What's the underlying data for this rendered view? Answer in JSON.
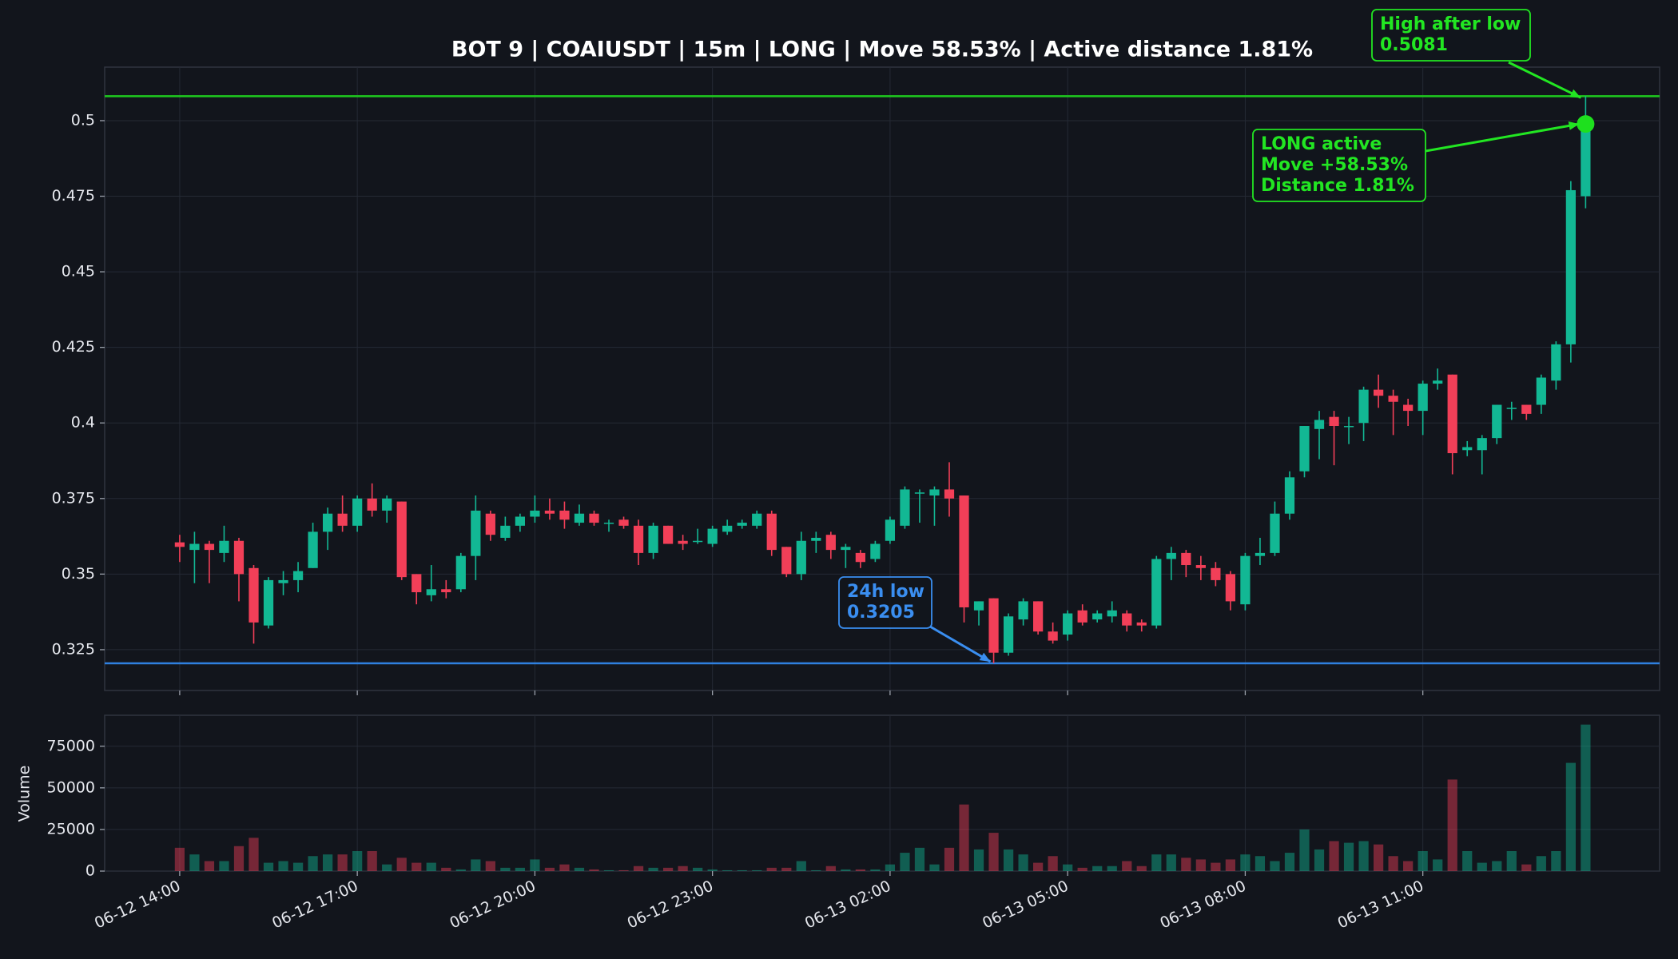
{
  "chart_data": [
    {
      "type": "candlestick",
      "title": "BOT 9 | COAIUSDT | 15m | LONG | Move 58.53% | Active distance 1.81%",
      "x": [
        "06-12 14:00",
        "06-12 14:15",
        "06-12 14:30",
        "06-12 14:45",
        "06-12 15:00",
        "06-12 15:15",
        "06-12 15:30",
        "06-12 15:45",
        "06-12 16:00",
        "06-12 16:15",
        "06-12 16:30",
        "06-12 16:45",
        "06-12 17:00",
        "06-12 17:15",
        "06-12 17:30",
        "06-12 17:45",
        "06-12 18:00",
        "06-12 18:15",
        "06-12 18:30",
        "06-12 18:45",
        "06-12 19:00",
        "06-12 19:15",
        "06-12 19:30",
        "06-12 19:45",
        "06-12 20:00",
        "06-12 20:15",
        "06-12 20:30",
        "06-12 20:45",
        "06-12 21:00",
        "06-12 21:15",
        "06-12 21:30",
        "06-12 21:45",
        "06-12 22:00",
        "06-12 22:15",
        "06-12 22:30",
        "06-12 22:45",
        "06-12 23:00",
        "06-12 23:15",
        "06-12 23:30",
        "06-12 23:45",
        "06-13 00:00",
        "06-13 00:15",
        "06-13 00:30",
        "06-13 00:45",
        "06-13 01:00",
        "06-13 01:15",
        "06-13 01:30",
        "06-13 01:45",
        "06-13 02:00",
        "06-13 02:15",
        "06-13 02:30",
        "06-13 02:45",
        "06-13 03:00",
        "06-13 03:15",
        "06-13 03:30",
        "06-13 03:45",
        "06-13 04:00",
        "06-13 04:15",
        "06-13 04:30",
        "06-13 04:45",
        "06-13 05:00",
        "06-13 05:15",
        "06-13 05:30",
        "06-13 05:45",
        "06-13 06:00",
        "06-13 06:15",
        "06-13 06:30",
        "06-13 06:45",
        "06-13 07:00",
        "06-13 07:15",
        "06-13 07:30",
        "06-13 07:45",
        "06-13 08:00",
        "06-13 08:15",
        "06-13 08:30",
        "06-13 08:45",
        "06-13 09:00",
        "06-13 09:15",
        "06-13 09:30",
        "06-13 09:45",
        "06-13 10:00",
        "06-13 10:15",
        "06-13 10:30",
        "06-13 10:45",
        "06-13 11:00",
        "06-13 11:15",
        "06-13 11:30",
        "06-13 11:45",
        "06-13 12:00",
        "06-13 12:15",
        "06-13 12:30",
        "06-13 12:45",
        "06-13 13:00",
        "06-13 13:15",
        "06-13 13:30",
        "06-13 13:45"
      ],
      "open": [
        0.3605,
        0.358,
        0.36,
        0.357,
        0.361,
        0.352,
        0.333,
        0.347,
        0.348,
        0.352,
        0.364,
        0.37,
        0.366,
        0.375,
        0.371,
        0.374,
        0.35,
        0.343,
        0.345,
        0.345,
        0.356,
        0.37,
        0.362,
        0.366,
        0.369,
        0.371,
        0.371,
        0.367,
        0.37,
        0.367,
        0.368,
        0.366,
        0.357,
        0.366,
        0.361,
        0.361,
        0.36,
        0.364,
        0.366,
        0.366,
        0.37,
        0.359,
        0.35,
        0.361,
        0.363,
        0.358,
        0.357,
        0.355,
        0.361,
        0.366,
        0.377,
        0.376,
        0.378,
        0.376,
        0.338,
        0.342,
        0.324,
        0.335,
        0.341,
        0.331,
        0.33,
        0.338,
        0.335,
        0.336,
        0.337,
        0.334,
        0.333,
        0.355,
        0.357,
        0.353,
        0.352,
        0.35,
        0.34,
        0.356,
        0.357,
        0.37,
        0.384,
        0.398,
        0.402,
        0.399,
        0.4,
        0.411,
        0.409,
        0.406,
        0.404,
        0.413,
        0.416,
        0.391,
        0.391,
        0.395,
        0.405,
        0.406,
        0.406,
        0.414,
        0.426,
        0.475
      ],
      "high": [
        0.363,
        0.364,
        0.361,
        0.366,
        0.362,
        0.353,
        0.349,
        0.351,
        0.354,
        0.367,
        0.372,
        0.376,
        0.376,
        0.38,
        0.376,
        0.374,
        0.35,
        0.353,
        0.348,
        0.357,
        0.376,
        0.371,
        0.369,
        0.37,
        0.376,
        0.375,
        0.374,
        0.373,
        0.371,
        0.368,
        0.369,
        0.368,
        0.367,
        0.366,
        0.363,
        0.365,
        0.366,
        0.368,
        0.368,
        0.371,
        0.371,
        0.359,
        0.364,
        0.364,
        0.364,
        0.36,
        0.358,
        0.361,
        0.369,
        0.379,
        0.378,
        0.379,
        0.387,
        0.376,
        0.341,
        0.342,
        0.337,
        0.342,
        0.341,
        0.334,
        0.338,
        0.34,
        0.338,
        0.341,
        0.338,
        0.335,
        0.356,
        0.359,
        0.358,
        0.356,
        0.354,
        0.351,
        0.357,
        0.362,
        0.374,
        0.384,
        0.399,
        0.404,
        0.404,
        0.402,
        0.412,
        0.416,
        0.411,
        0.408,
        0.414,
        0.418,
        0.416,
        0.394,
        0.396,
        0.406,
        0.407,
        0.406,
        0.416,
        0.427,
        0.48,
        0.5081
      ],
      "low": [
        0.354,
        0.347,
        0.347,
        0.354,
        0.341,
        0.327,
        0.332,
        0.343,
        0.344,
        0.352,
        0.358,
        0.364,
        0.364,
        0.369,
        0.367,
        0.348,
        0.34,
        0.341,
        0.342,
        0.344,
        0.348,
        0.361,
        0.361,
        0.364,
        0.367,
        0.368,
        0.365,
        0.366,
        0.366,
        0.364,
        0.365,
        0.353,
        0.355,
        0.36,
        0.358,
        0.36,
        0.359,
        0.363,
        0.365,
        0.365,
        0.356,
        0.349,
        0.348,
        0.357,
        0.355,
        0.352,
        0.352,
        0.354,
        0.36,
        0.365,
        0.367,
        0.366,
        0.369,
        0.334,
        0.333,
        0.3205,
        0.323,
        0.333,
        0.33,
        0.327,
        0.328,
        0.333,
        0.334,
        0.334,
        0.331,
        0.331,
        0.332,
        0.348,
        0.349,
        0.348,
        0.346,
        0.338,
        0.338,
        0.353,
        0.356,
        0.368,
        0.382,
        0.388,
        0.386,
        0.393,
        0.394,
        0.405,
        0.396,
        0.399,
        0.396,
        0.411,
        0.383,
        0.389,
        0.383,
        0.393,
        0.401,
        0.401,
        0.403,
        0.411,
        0.42,
        0.471
      ],
      "close": [
        0.359,
        0.36,
        0.358,
        0.361,
        0.35,
        0.334,
        0.348,
        0.348,
        0.351,
        0.364,
        0.37,
        0.366,
        0.375,
        0.371,
        0.375,
        0.349,
        0.344,
        0.345,
        0.344,
        0.356,
        0.371,
        0.363,
        0.366,
        0.369,
        0.371,
        0.37,
        0.368,
        0.37,
        0.367,
        0.367,
        0.366,
        0.357,
        0.366,
        0.36,
        0.36,
        0.361,
        0.365,
        0.366,
        0.367,
        0.37,
        0.358,
        0.35,
        0.361,
        0.362,
        0.358,
        0.359,
        0.354,
        0.36,
        0.368,
        0.378,
        0.377,
        0.378,
        0.375,
        0.339,
        0.341,
        0.324,
        0.336,
        0.341,
        0.331,
        0.328,
        0.337,
        0.334,
        0.337,
        0.338,
        0.333,
        0.333,
        0.355,
        0.357,
        0.353,
        0.352,
        0.348,
        0.341,
        0.356,
        0.357,
        0.37,
        0.382,
        0.399,
        0.401,
        0.399,
        0.399,
        0.411,
        0.409,
        0.407,
        0.404,
        0.413,
        0.414,
        0.39,
        0.392,
        0.395,
        0.406,
        0.405,
        0.403,
        0.415,
        0.426,
        0.477,
        0.4989
      ],
      "up_color": "#12b894",
      "down_color": "#f23f58",
      "ylim": [
        0.3115,
        0.5177
      ],
      "yticks": [
        0.325,
        0.35,
        0.375,
        0.4,
        0.425,
        0.45,
        0.475,
        0.5
      ],
      "xticks": [
        "06-12 14:00",
        "06-12 17:00",
        "06-12 20:00",
        "06-12 23:00",
        "06-13 02:00",
        "06-13 05:00",
        "06-13 08:00",
        "06-13 11:00"
      ],
      "grid": true,
      "lines": [
        {
          "value": 0.5081,
          "color": "#1ec81e"
        },
        {
          "value": 0.3205,
          "color": "#2f80e0"
        }
      ],
      "marker": {
        "color": "#1ee01e"
      },
      "annotations": [
        {
          "lines": [
            "High after low",
            "0.5081"
          ],
          "color": "#22e622"
        },
        {
          "lines": [
            "LONG active",
            "Move +58.53%",
            "Distance 1.81%"
          ],
          "color": "#22e622"
        },
        {
          "lines": [
            "24h low",
            "0.3205"
          ],
          "color": "#3a8ef0"
        }
      ]
    },
    {
      "type": "bar",
      "ylabel": "Volume",
      "values": [
        14000,
        10000,
        6000,
        6000,
        15000,
        20000,
        5000,
        6000,
        5000,
        9000,
        10000,
        10000,
        12000,
        12000,
        4000,
        8000,
        5000,
        5000,
        2000,
        1000,
        7000,
        6000,
        2000,
        2000,
        7000,
        2000,
        4000,
        2000,
        1000,
        500,
        500,
        3000,
        2000,
        2000,
        3000,
        2000,
        1000,
        500,
        500,
        500,
        2000,
        2000,
        6000,
        500,
        3000,
        1000,
        1000,
        1000,
        4000,
        11000,
        14000,
        4000,
        14000,
        40000,
        13000,
        23000,
        13000,
        10000,
        5000,
        9000,
        4000,
        2000,
        3000,
        3000,
        6000,
        3000,
        10000,
        10000,
        8000,
        7000,
        5000,
        7000,
        10000,
        9000,
        6000,
        11000,
        25000,
        13000,
        18000,
        17000,
        18000,
        16000,
        9000,
        6000,
        12000,
        7000,
        55000,
        12000,
        5000,
        6000,
        12000,
        4000,
        9000,
        12000,
        65000,
        88000
      ],
      "ylim": [
        0,
        93600
      ],
      "yticks": [
        0,
        25000,
        50000,
        75000
      ],
      "grid": true
    }
  ]
}
